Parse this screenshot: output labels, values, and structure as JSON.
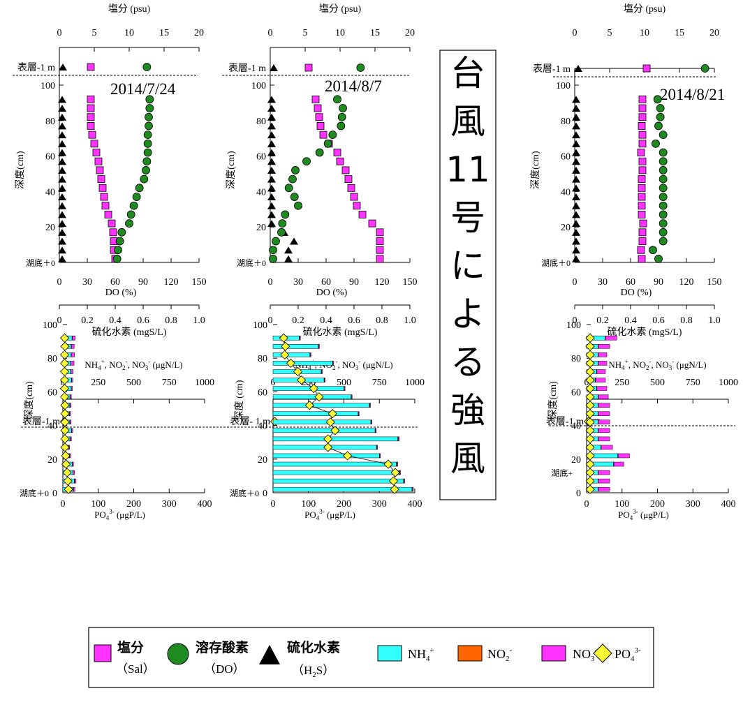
{
  "banner": {
    "text": [
      "台",
      "風",
      "11",
      "号",
      "に",
      "よ",
      "る",
      "強",
      "風"
    ]
  },
  "labels": {
    "salinity_axis": "塩分 (psu)",
    "do_axis": "DO (%)",
    "h2s_axis": "硫化水素 (mgS/L)",
    "depth_axis": "深度(cm)",
    "depth_axis_mid": "深度 (cm)",
    "surface_label": "表層-1 m",
    "surface_label_mid": "表層- 1 m",
    "bottom_label": "湖底＋0",
    "bottom_label_right": "湖底+",
    "n_axis_prefix": "NH",
    "po4_axis_prefix": "PO",
    "po4_axis_unit": " (μgP/L)"
  },
  "legend": {
    "sal": "塩分",
    "sal_sub": "（Sal）",
    "do": "溶存酸素",
    "do_sub": "（DO）",
    "h2s": "硫化水素",
    "h2s_sub": "（H",
    "nh4": "NH",
    "no2": "NO",
    "no3": "NO",
    "po4": "PO"
  },
  "colors": {
    "salinity": "#ff33ff",
    "do": "#1f8a1f",
    "h2s": "#000000",
    "nh4": "#33ffff",
    "no2": "#ff6600",
    "no3": "#ff33ff",
    "po4": "#ffff33"
  },
  "chart_data": [
    {
      "type": "scatter",
      "date": "2014/7/24",
      "depths_cm": [
        92,
        87,
        82,
        77,
        72,
        67,
        62,
        57,
        52,
        47,
        42,
        37,
        32,
        27,
        22,
        17,
        12,
        7,
        2
      ],
      "surface": {
        "salinity": 4.5,
        "do": 94,
        "h2s": 0
      },
      "salinity_psu": [
        4.5,
        4.5,
        4.5,
        4.5,
        4.7,
        5.0,
        5.3,
        5.6,
        5.8,
        6.0,
        6.2,
        6.4,
        6.6,
        7.0,
        7.5,
        7.7,
        7.8,
        7.8,
        8.0
      ],
      "do_percent": [
        97,
        97,
        96,
        96,
        95,
        95,
        95,
        94,
        93,
        91,
        86,
        83,
        80,
        77,
        75,
        67,
        65,
        63,
        62
      ],
      "h2s_mgS_L": [
        0.02,
        0.02,
        0.02,
        0.02,
        0.02,
        0.02,
        0.02,
        0.02,
        0.02,
        0.02,
        0.02,
        0.02,
        0.02,
        0.02,
        0.02,
        0.02,
        0.02,
        0.02,
        0.02
      ],
      "salinity_ticks": [
        0,
        5,
        10,
        15,
        20
      ],
      "do_ticks": [
        0,
        30,
        60,
        90,
        120,
        150
      ],
      "h2s_ticks": [
        "0",
        "0.2",
        "0.4",
        "0.6",
        "0.8",
        "1.0"
      ],
      "depth_ticks": [
        0,
        20,
        40,
        60,
        80,
        100
      ]
    },
    {
      "type": "scatter",
      "date": "2014/8/7",
      "depths_cm": [
        92,
        87,
        82,
        77,
        72,
        67,
        62,
        57,
        52,
        47,
        42,
        37,
        32,
        27,
        22,
        17,
        12,
        7,
        2
      ],
      "surface": {
        "salinity": 5.5,
        "do": 97,
        "h2s": 0
      },
      "salinity_psu": [
        6.5,
        6.8,
        7.0,
        7.2,
        7.6,
        8.4,
        9.6,
        10.0,
        10.8,
        11.2,
        11.6,
        12.0,
        12.4,
        13.2,
        14.6,
        15.7,
        15.7,
        15.7,
        15.7
      ],
      "do_percent": [
        72,
        78,
        77,
        76,
        67,
        62,
        53,
        39,
        27,
        24,
        20,
        26,
        30,
        16,
        13,
        12,
        6,
        3,
        3
      ],
      "h2s_mgS_L": [
        0.01,
        0.01,
        0.01,
        0.01,
        0.01,
        0.01,
        0.01,
        0.01,
        0.01,
        0.01,
        0.01,
        0.01,
        0.01,
        0.01,
        0.01,
        0.1,
        0.17,
        0.13,
        0.13
      ],
      "salinity_ticks": [
        0,
        5,
        10,
        15,
        20
      ],
      "do_ticks": [
        0,
        30,
        60,
        90,
        120,
        150
      ],
      "h2s_ticks": [
        "0",
        "0.2",
        "0.4",
        "0.6",
        "0.8",
        "1.0"
      ],
      "depth_ticks": [
        0,
        20,
        40,
        60,
        80,
        100
      ]
    },
    {
      "type": "scatter",
      "date": "2014/8/21",
      "depths_cm": [
        92,
        87,
        82,
        77,
        72,
        67,
        62,
        57,
        52,
        47,
        42,
        37,
        32,
        27,
        22,
        17,
        12,
        7,
        2
      ],
      "surface": {
        "salinity": 10.3,
        "do": 140,
        "h2s": 0
      },
      "salinity_psu": [
        9.7,
        9.7,
        9.7,
        9.6,
        9.7,
        9.7,
        9.5,
        9.7,
        9.7,
        9.6,
        9.6,
        9.6,
        9.6,
        9.6,
        9.8,
        9.7,
        9.7,
        9.5,
        9.6
      ],
      "do_percent": [
        89,
        92,
        92,
        90,
        95,
        87,
        95,
        95,
        95,
        95,
        95,
        95,
        95,
        95,
        95,
        95,
        95,
        84,
        90
      ],
      "h2s_mgS_L": [
        0.01,
        0.01,
        0.01,
        0.01,
        0.01,
        0.01,
        0.01,
        0.01,
        0.01,
        0.01,
        0.01,
        0.01,
        0.01,
        0.01,
        0.01,
        0.01,
        0.01,
        0.01,
        0.01
      ],
      "salinity_ticks": [
        0,
        5,
        10,
        15,
        20
      ],
      "do_ticks": [
        0,
        30,
        60,
        90,
        120,
        150
      ],
      "h2s_ticks": [
        "0",
        "0.2",
        "0.4",
        "0.6",
        "0.8",
        "1.0"
      ],
      "depth_ticks": [
        0,
        20,
        40,
        60,
        80,
        100
      ]
    },
    {
      "type": "bar",
      "panel": "nutrients-7-24",
      "depths_cm": [
        92,
        87,
        82,
        77,
        72,
        67,
        62,
        57,
        52,
        47,
        42,
        37,
        32,
        27,
        22,
        17,
        12,
        7,
        2
      ],
      "nh4": [
        65,
        58,
        58,
        55,
        55,
        60,
        58,
        50,
        48,
        45,
        48,
        60,
        50,
        38,
        45,
        65,
        70,
        80,
        72
      ],
      "no2": [
        2,
        2,
        2,
        2,
        2,
        2,
        2,
        2,
        2,
        2,
        2,
        2,
        2,
        2,
        2,
        2,
        2,
        3,
        3
      ],
      "no3": [
        20,
        20,
        22,
        22,
        15,
        8,
        8,
        8,
        8,
        8,
        8,
        8,
        8,
        8,
        8,
        8,
        10,
        10,
        10
      ],
      "po4_ugP_L": [
        5,
        6,
        5,
        5,
        5,
        5,
        5,
        5,
        6,
        6,
        6,
        6,
        6,
        6,
        8,
        9,
        12,
        14,
        16
      ],
      "surface_po4": 5,
      "n_ticks": [
        0,
        250,
        500,
        750,
        1000
      ],
      "po4_ticks": [
        0,
        100,
        200,
        300,
        400
      ],
      "depth_ticks": [
        20,
        40,
        60,
        80,
        100
      ],
      "depth_zero_label": "0"
    },
    {
      "type": "bar",
      "panel": "nutrients-8-7",
      "depths_cm": [
        92,
        87,
        82,
        77,
        72,
        67,
        62,
        57,
        52,
        47,
        42,
        37,
        32,
        27,
        22,
        17,
        12,
        7,
        2
      ],
      "nh4": [
        185,
        320,
        260,
        420,
        340,
        360,
        500,
        550,
        680,
        600,
        690,
        720,
        880,
        730,
        750,
        870,
        890,
        920,
        980
      ],
      "no2": [
        3,
        3,
        3,
        3,
        3,
        3,
        3,
        3,
        3,
        3,
        3,
        3,
        5,
        3,
        3,
        5,
        5,
        5,
        5
      ],
      "no3": [
        5,
        5,
        5,
        5,
        5,
        5,
        5,
        5,
        5,
        5,
        5,
        5,
        5,
        5,
        5,
        5,
        5,
        5,
        5
      ],
      "po4_ugP_L": [
        30,
        35,
        33,
        50,
        70,
        80,
        115,
        130,
        103,
        168,
        162,
        175,
        155,
        155,
        210,
        325,
        345,
        340,
        343
      ],
      "surface_po4": 5,
      "n_ticks": [
        0,
        250,
        500,
        750,
        1000
      ],
      "po4_ticks": [
        0,
        100,
        200,
        300,
        400
      ],
      "depth_ticks": [
        20,
        40,
        60,
        80,
        100
      ],
      "depth_zero_label": "0"
    },
    {
      "type": "bar",
      "panel": "nutrients-8-21",
      "depths_cm": [
        92,
        87,
        82,
        77,
        72,
        67,
        62,
        57,
        52,
        47,
        42,
        37,
        32,
        27,
        22,
        17,
        12,
        7,
        2
      ],
      "nh4": [
        130,
        80,
        80,
        80,
        70,
        60,
        70,
        80,
        80,
        80,
        80,
        80,
        80,
        100,
        220,
        190,
        80,
        80,
        80
      ],
      "no2": [
        3,
        3,
        3,
        3,
        3,
        3,
        3,
        3,
        3,
        3,
        3,
        3,
        3,
        3,
        3,
        3,
        3,
        3,
        3
      ],
      "no3": [
        80,
        80,
        60,
        60,
        60,
        70,
        70,
        70,
        80,
        80,
        80,
        80,
        80,
        80,
        80,
        70,
        80,
        80,
        80
      ],
      "po4_ugP_L": [
        10,
        10,
        10,
        10,
        10,
        10,
        10,
        10,
        10,
        10,
        10,
        10,
        10,
        10,
        10,
        10,
        10,
        10,
        10
      ],
      "surface_no3": 90,
      "surface_po4": 5,
      "n_ticks": [
        0,
        250,
        500,
        750,
        1000
      ],
      "po4_ticks": [
        0,
        100,
        200,
        300,
        400
      ],
      "depth_ticks": [
        20,
        40,
        60,
        80,
        100
      ],
      "depth_zero_label": "0"
    }
  ]
}
